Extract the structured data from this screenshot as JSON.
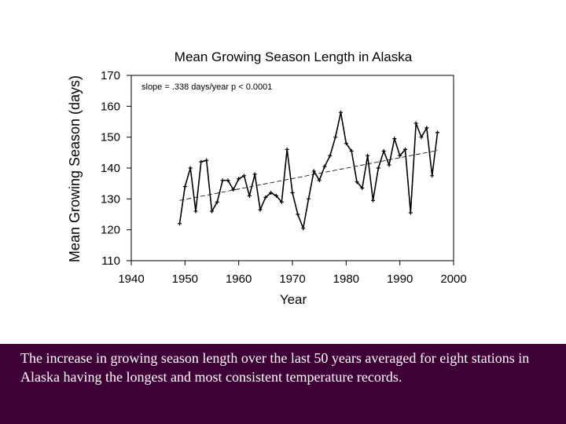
{
  "chart_data": {
    "type": "line",
    "title": "Mean Growing Season Length in Alaska",
    "xlabel": "Year",
    "ylabel": "Mean Growing Season (days)",
    "xlim": [
      1940,
      2000
    ],
    "ylim": [
      110,
      170
    ],
    "xticks": [
      1940,
      1950,
      1960,
      1970,
      1980,
      1990,
      2000
    ],
    "yticks": [
      110,
      120,
      130,
      140,
      150,
      160,
      170
    ],
    "grid": false,
    "annotation": "slope = .338 days/year  p < 0.0001",
    "series": [
      {
        "x": [
          1949,
          1950,
          1951,
          1952,
          1953,
          1954,
          1955,
          1956,
          1957,
          1958,
          1959,
          1960,
          1961,
          1962,
          1963,
          1964,
          1965,
          1966,
          1967,
          1968,
          1969,
          1970,
          1971,
          1972,
          1973,
          1974,
          1975,
          1976,
          1977,
          1978,
          1979,
          1980,
          1981,
          1982,
          1983,
          1984,
          1985,
          1986,
          1987,
          1988,
          1989,
          1990,
          1991,
          1992,
          1993,
          1994,
          1995,
          1996,
          1997
        ],
        "y": [
          122,
          134,
          140,
          126,
          142,
          142.5,
          126,
          129,
          136,
          136,
          133,
          136.5,
          137.5,
          131,
          138,
          126.5,
          130.5,
          132,
          131,
          129,
          146,
          132,
          125,
          120.5,
          130,
          139,
          136,
          140.5,
          144,
          150,
          158,
          148,
          145.5,
          135.5,
          133.5,
          144,
          129.5,
          140,
          145.5,
          141,
          149.5,
          144,
          146,
          125.5,
          154.5,
          150,
          153,
          137.5,
          151.5
        ],
        "color": "#000000"
      }
    ],
    "trendline": {
      "x": [
        1949,
        1997
      ],
      "y": [
        129.5,
        145.7
      ],
      "style": "dashed"
    }
  },
  "caption": "The increase in growing season length over the last 50 years averaged for eight stations in Alaska having the longest and most consistent  temperature records."
}
